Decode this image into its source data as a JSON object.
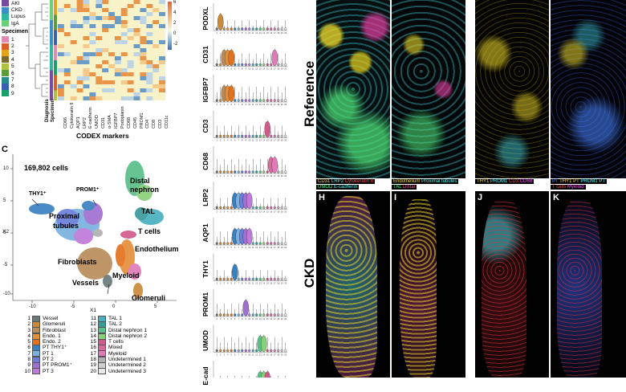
{
  "heatmap": {
    "diagnosis_legend_items": [
      {
        "label": "AKI",
        "color": "#7a4a9e"
      },
      {
        "label": "CKD",
        "color": "#3c8fc4"
      },
      {
        "label": "Lupus",
        "color": "#30b7a0"
      },
      {
        "label": "IgA",
        "color": "#6bd07a"
      }
    ],
    "specimen_title": "Specimen",
    "specimen_items": [
      {
        "label": "1",
        "color": "#e08bb0"
      },
      {
        "label": "2",
        "color": "#d95f2a"
      },
      {
        "label": "3",
        "color": "#e3a21a"
      },
      {
        "label": "4",
        "color": "#7a6a2f"
      },
      {
        "label": "5",
        "color": "#b0c040"
      },
      {
        "label": "6",
        "color": "#5a9c3a"
      },
      {
        "label": "7",
        "color": "#2a8a8a"
      },
      {
        "label": "8",
        "color": "#3a5fb0"
      },
      {
        "label": "9",
        "color": "#1aa068"
      }
    ],
    "row_annot_labels": [
      "Diagnosis",
      "Specimen"
    ],
    "marker_labels": [
      "CD66",
      "Cytokeratin 8",
      "AQP1",
      "LRP2",
      "E-cadherin",
      "UMOD",
      "CD31",
      "α-SMA",
      "IGFBP7",
      "Podoplanin",
      "CD68",
      "CD45",
      "PROM1",
      "CD4",
      "CD8",
      "CD3",
      "CD11c"
    ],
    "scale_ticks": [
      "6",
      "4",
      "2",
      "0",
      "-2"
    ],
    "xaxis_title": "CODEX markers"
  },
  "umap": {
    "panel_letter": "C",
    "cell_count": "169,802 cells",
    "xaxis_label": "X1",
    "yaxis_label": "X2",
    "xticks": [
      "-10",
      "-5",
      "0",
      "5"
    ],
    "yticks": [
      "10",
      "5",
      "0",
      "-5",
      "-10"
    ],
    "cluster_labels": {
      "thy1": "THY1⁺",
      "prom1": "PROM1⁺",
      "distal": "Distal",
      "nephron": "nephron",
      "tal": "TAL",
      "proximal": "Proximal",
      "tubules": "tubules",
      "tcells": "T cells",
      "endothelium": "Endothelium",
      "fibroblasts": "Fibroblasts",
      "myeloid": "Myeloid",
      "vessels": "Vessels",
      "glomeruli": "Glomeruli"
    }
  },
  "cluster_legend": [
    {
      "num": "1",
      "label": "Vessel",
      "color": "#6a7a78"
    },
    {
      "num": "2",
      "label": "Glomeruli",
      "color": "#c98a3a"
    },
    {
      "num": "3",
      "label": "Fibroblast",
      "color": "#b88d5a"
    },
    {
      "num": "4",
      "label": "Endo. 1",
      "color": "#e58f3a"
    },
    {
      "num": "5",
      "label": "Endo. 2",
      "color": "#e2721e"
    },
    {
      "num": "6",
      "label": "PT THY1⁺",
      "color": "#3a7fc0"
    },
    {
      "num": "7",
      "label": "PT 1",
      "color": "#7ab0e0"
    },
    {
      "num": "8",
      "label": "PT 2",
      "color": "#6b7ed8"
    },
    {
      "num": "9",
      "label": "PT PROM1⁺",
      "color": "#a070d0"
    },
    {
      "num": "10",
      "label": "PT 3",
      "color": "#c07ad8"
    },
    {
      "num": "11",
      "label": "TAL 1",
      "color": "#4ab0c0"
    },
    {
      "num": "12",
      "label": "TAL 2",
      "color": "#3a9a9a"
    },
    {
      "num": "13",
      "label": "Distal nephron 1",
      "color": "#5ac08a"
    },
    {
      "num": "14",
      "label": "Distal nephron 2",
      "color": "#8ad07a"
    },
    {
      "num": "15",
      "label": "T cells",
      "color": "#d05a8a"
    },
    {
      "num": "16",
      "label": "Mixed",
      "color": "#d86aa0"
    },
    {
      "num": "17",
      "label": "Myeloid",
      "color": "#e07ab8"
    },
    {
      "num": "18",
      "label": "Undetermined 1",
      "color": "#b0b0b0"
    },
    {
      "num": "19",
      "label": "Undetermined 2",
      "color": "#cfcfcf"
    },
    {
      "num": "20",
      "label": "Undetermined 3",
      "color": "#e8e8e8"
    }
  ],
  "violins": {
    "markers": [
      "PODXL",
      "CD31",
      "IGFBP7",
      "CD3",
      "CD68",
      "LRP2",
      "AQP1",
      "THY1",
      "PROM1",
      "UMOD",
      "E-cad"
    ],
    "xticks": [
      "1",
      "2",
      "3",
      "4",
      "5",
      "6",
      "7",
      "8",
      "9",
      "10",
      "11",
      "12",
      "13",
      "14",
      "15",
      "16",
      "17",
      "18",
      "19",
      "20"
    ]
  },
  "microscopy": {
    "reference_label": "Reference",
    "ckd_label": "CKD",
    "panels": {
      "H": "H",
      "I": "I",
      "J": "J",
      "K": "K"
    },
    "caption_ref_1": [
      {
        "text": "CD31 ",
        "color": "#ffdf3a"
      },
      {
        "text": "LRP2 ",
        "color": "#4affff"
      },
      {
        "text": "Cytokeratin 8",
        "color": "#ff4a4a"
      }
    ],
    "caption_ref_1b": [
      {
        "text": "UMOD ",
        "color": "#4aff8a"
      },
      {
        "text": "E-cadherin",
        "color": "#4affff"
      }
    ],
    "caption_ref_2": [
      {
        "text": "Endothelium ",
        "color": "#ffdf3a"
      },
      {
        "text": "Proximal tubules",
        "color": "#4affff"
      }
    ],
    "caption_ref_2b": [
      {
        "text": "TAL ",
        "color": "#4aff8a"
      },
      {
        "text": "Distal",
        "color": "#ff4a9a"
      }
    ],
    "caption_ref_3": [
      {
        "text": "THY1 ",
        "color": "#ffdf3a"
      },
      {
        "text": "PROM1 ",
        "color": "#4affff"
      },
      {
        "text": "CD3 ",
        "color": "#ff4a4a"
      },
      {
        "text": "CD68",
        "color": "#ff4aff"
      }
    ],
    "caption_ref_4": [
      {
        "text": "PT ",
        "color": "#4a8aff"
      },
      {
        "text": "THY1 PT ",
        "color": "#ffdf3a"
      },
      {
        "text": "PROM1 PT",
        "color": "#4affff"
      }
    ],
    "caption_ref_4b": [
      {
        "text": "T cells ",
        "color": "#ff4a4a"
      },
      {
        "text": "Myeloid",
        "color": "#ff4aff"
      }
    ]
  }
}
